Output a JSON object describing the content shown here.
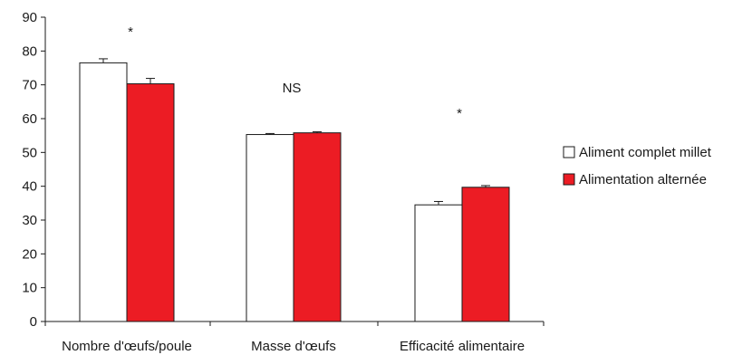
{
  "chart_data": {
    "type": "bar",
    "title": "",
    "xlabel": "",
    "ylabel": "",
    "categories": [
      "Nombre d'œufs/poule",
      "Masse d'œufs",
      "Efficacité alimentaire"
    ],
    "series": [
      {
        "name": "Aliment complet millet",
        "values": [
          76.5,
          55.3,
          34.5
        ],
        "errors": [
          1.2,
          0.3,
          1.0
        ],
        "color": "#ffffff"
      },
      {
        "name": "Alimentation alternée",
        "values": [
          70.3,
          55.8,
          39.7
        ],
        "errors": [
          1.6,
          0.3,
          0.5
        ],
        "color": "#ec1c24"
      }
    ],
    "ylim": [
      0,
      90
    ],
    "yticks": [
      0,
      10,
      20,
      30,
      40,
      50,
      60,
      70,
      80,
      90
    ],
    "annotations": [
      "*",
      "NS",
      "*"
    ],
    "legend_position": "right",
    "grid": false
  }
}
